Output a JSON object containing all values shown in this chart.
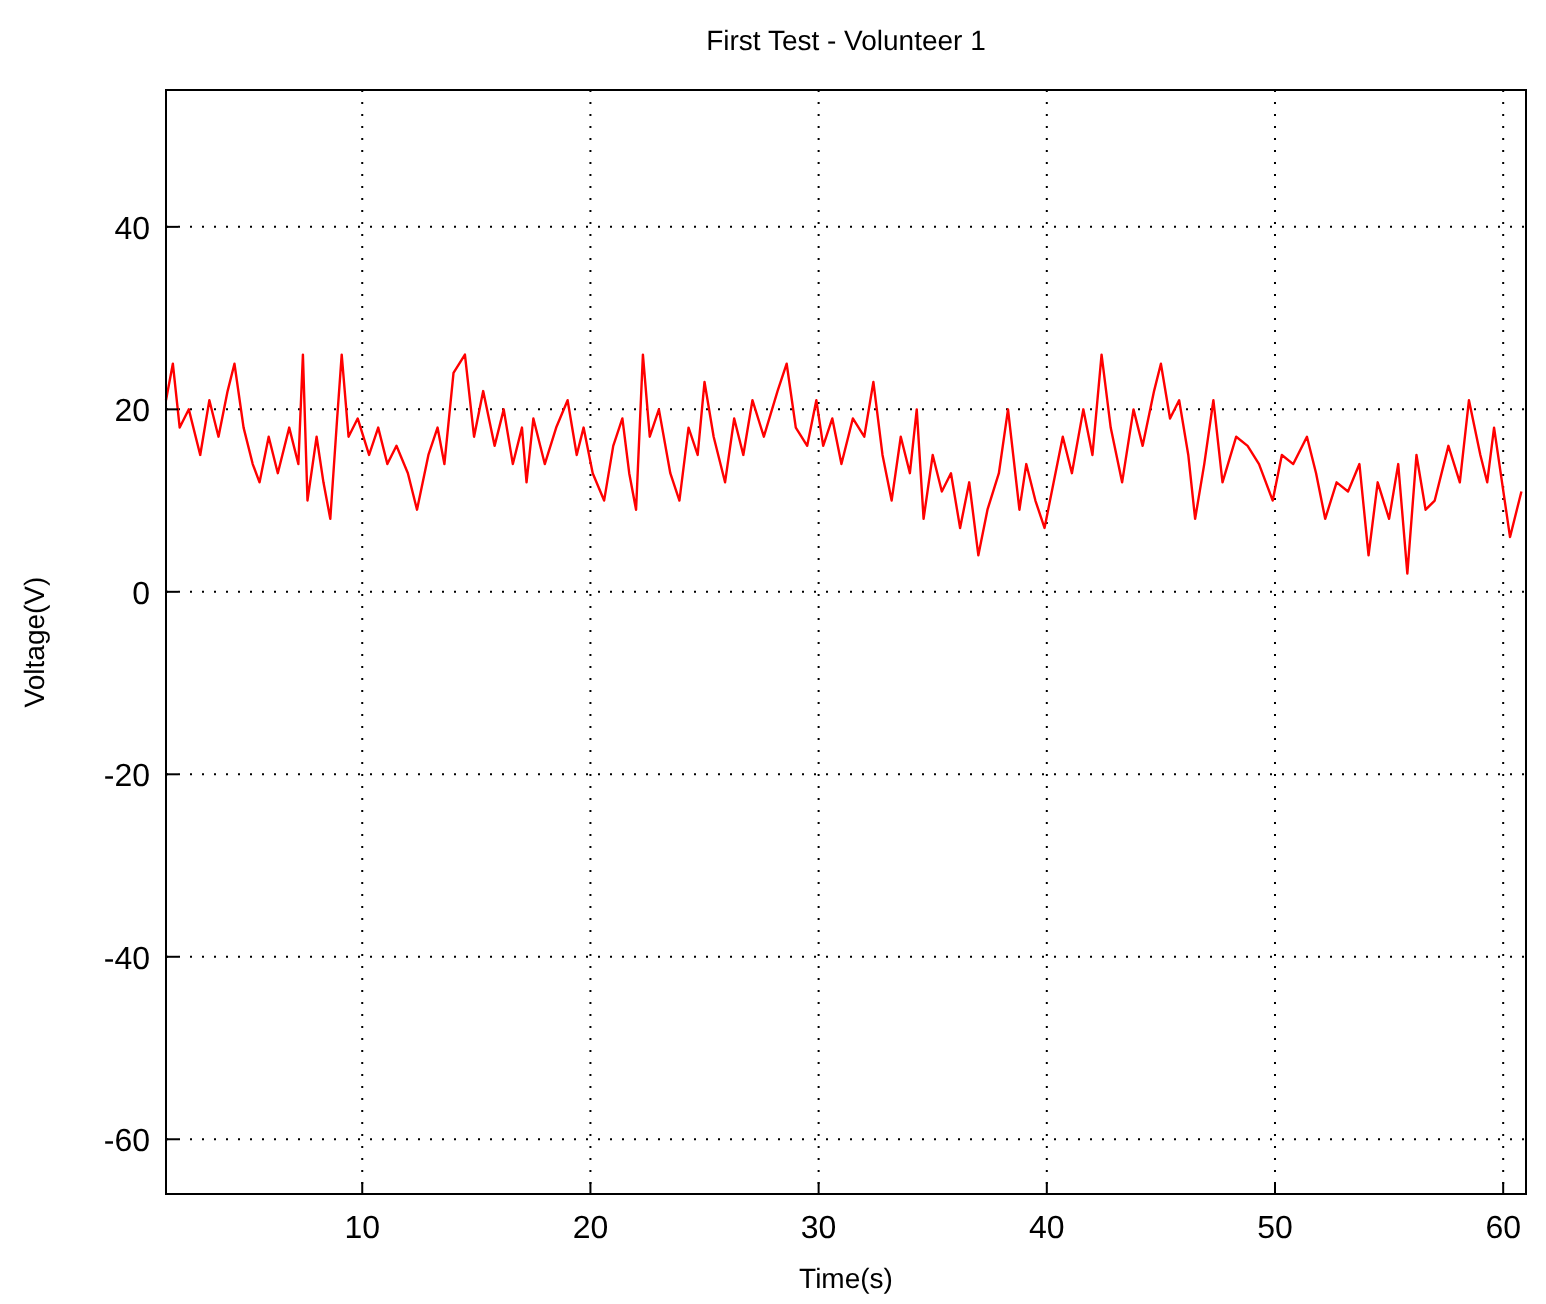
{
  "chart_data": {
    "type": "line",
    "title": "First Test - Volunteer 1",
    "xlabel": "Time(s)",
    "ylabel": "Voltage(V)",
    "xlim": [
      1.4,
      61
    ],
    "ylim": [
      -66,
      55
    ],
    "xticks": [
      10,
      20,
      30,
      40,
      50,
      60
    ],
    "yticks": [
      -60,
      -40,
      -20,
      0,
      20,
      40
    ],
    "grid": true,
    "marker": "none",
    "line_style": "solid",
    "series": [
      {
        "color": "#ff0000",
        "x": [
          1.4,
          1.7,
          2.0,
          2.4,
          2.9,
          3.3,
          3.7,
          4.1,
          4.4,
          4.8,
          5.2,
          5.5,
          5.9,
          6.3,
          6.8,
          7.2,
          7.4,
          7.6,
          8.0,
          8.3,
          8.6,
          8.9,
          9.1,
          9.4,
          9.8,
          10.3,
          10.7,
          11.1,
          11.5,
          12.0,
          12.4,
          12.9,
          13.3,
          13.6,
          14.0,
          14.5,
          14.9,
          15.3,
          15.8,
          16.2,
          16.6,
          17.0,
          17.2,
          17.5,
          18.0,
          18.5,
          19.0,
          19.4,
          19.7,
          20.1,
          20.6,
          21.0,
          21.4,
          21.7,
          22.0,
          22.3,
          22.6,
          23.0,
          23.5,
          23.9,
          24.3,
          24.7,
          25.0,
          25.4,
          25.9,
          26.3,
          26.7,
          27.1,
          27.6,
          28.2,
          28.6,
          29.0,
          29.5,
          29.9,
          30.2,
          30.6,
          31.0,
          31.5,
          32.0,
          32.4,
          32.8,
          33.2,
          33.6,
          34.0,
          34.3,
          34.6,
          35.0,
          35.4,
          35.8,
          36.2,
          36.6,
          37.0,
          37.4,
          37.9,
          38.3,
          38.8,
          39.1,
          39.5,
          39.9,
          40.3,
          40.7,
          41.1,
          41.6,
          42.0,
          42.4,
          42.8,
          43.3,
          43.8,
          44.2,
          44.7,
          45.0,
          45.4,
          45.8,
          46.2,
          46.5,
          46.9,
          47.3,
          47.7,
          48.3,
          48.8,
          49.3,
          49.9,
          50.3,
          50.8,
          51.4,
          51.8,
          52.2,
          52.7,
          53.2,
          53.7,
          54.1,
          54.5,
          55.0,
          55.4,
          55.8,
          56.2,
          56.6,
          57.0,
          57.6,
          58.1,
          58.5,
          59.0,
          59.3,
          59.6,
          60.3,
          60.8
        ],
        "values": [
          21,
          25,
          18,
          20,
          15,
          21,
          17,
          22,
          25,
          18,
          14,
          12,
          17,
          13,
          18,
          14,
          26,
          10,
          17,
          12,
          8,
          19,
          26,
          17,
          19,
          15,
          18,
          14,
          16,
          13,
          9,
          15,
          18,
          14,
          24,
          26,
          17,
          22,
          16,
          20,
          14,
          18,
          12,
          19,
          14,
          18,
          21,
          15,
          18,
          13,
          10,
          16,
          19,
          13,
          9,
          26,
          17,
          20,
          13,
          10,
          18,
          15,
          23,
          17,
          12,
          19,
          15,
          21,
          17,
          22,
          25,
          18,
          16,
          21,
          16,
          19,
          14,
          19,
          17,
          23,
          15,
          10,
          17,
          13,
          20,
          8,
          15,
          11,
          13,
          7,
          12,
          4,
          9,
          13,
          20,
          9,
          14,
          10,
          7,
          12,
          17,
          13,
          20,
          15,
          26,
          18,
          12,
          20,
          16,
          22,
          25,
          19,
          21,
          15,
          8,
          14,
          21,
          12,
          17,
          16,
          14,
          10,
          15,
          14,
          17,
          13,
          8,
          12,
          11,
          14,
          4,
          12,
          8,
          14,
          2,
          15,
          9,
          10,
          16,
          12,
          21,
          15,
          12,
          18,
          6,
          11
        ]
      }
    ]
  }
}
